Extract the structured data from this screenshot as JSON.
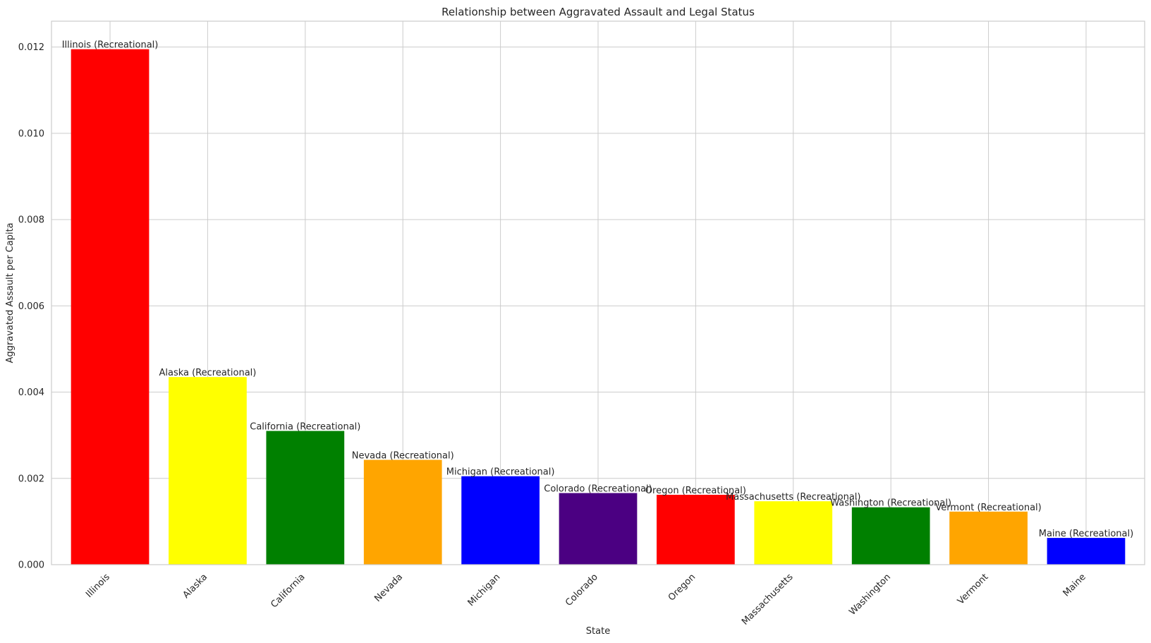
{
  "chart_data": {
    "type": "bar",
    "title": "Relationship between Aggravated Assault and Legal Status",
    "xlabel": "State",
    "ylabel": "Aggravated Assault per Capita",
    "categories": [
      "Illinois",
      "Alaska",
      "California",
      "Nevada",
      "Michigan",
      "Colorado",
      "Oregon",
      "Massachusetts",
      "Washington",
      "Vermont",
      "Maine"
    ],
    "values": [
      0.01195,
      0.00435,
      0.0031,
      0.00243,
      0.00205,
      0.00166,
      0.00162,
      0.00147,
      0.00133,
      0.00123,
      0.00062
    ],
    "bar_labels": [
      "Illinois (Recreational)",
      "Alaska (Recreational)",
      "California (Recreational)",
      "Nevada (Recreational)",
      "Michigan (Recreational)",
      "Colorado (Recreational)",
      "Oregon (Recreational)",
      "Massachusetts (Recreational)",
      "Washington (Recreational)",
      "Vermont (Recreational)",
      "Maine (Recreational)"
    ],
    "colors": [
      "#ff0000",
      "#ffff00",
      "#008000",
      "#ffa500",
      "#0000ff",
      "#4b0082",
      "#ff0000",
      "#ffff00",
      "#008000",
      "#ffa500",
      "#0000ff"
    ],
    "ylim": [
      0,
      0.0126
    ],
    "yticks": [
      "0.000",
      "0.002",
      "0.004",
      "0.006",
      "0.008",
      "0.010",
      "0.012"
    ],
    "ytick_values": [
      0,
      0.002,
      0.004,
      0.006,
      0.008,
      0.01,
      0.012
    ],
    "grid": true,
    "x_tick_rotation_deg": 45
  }
}
